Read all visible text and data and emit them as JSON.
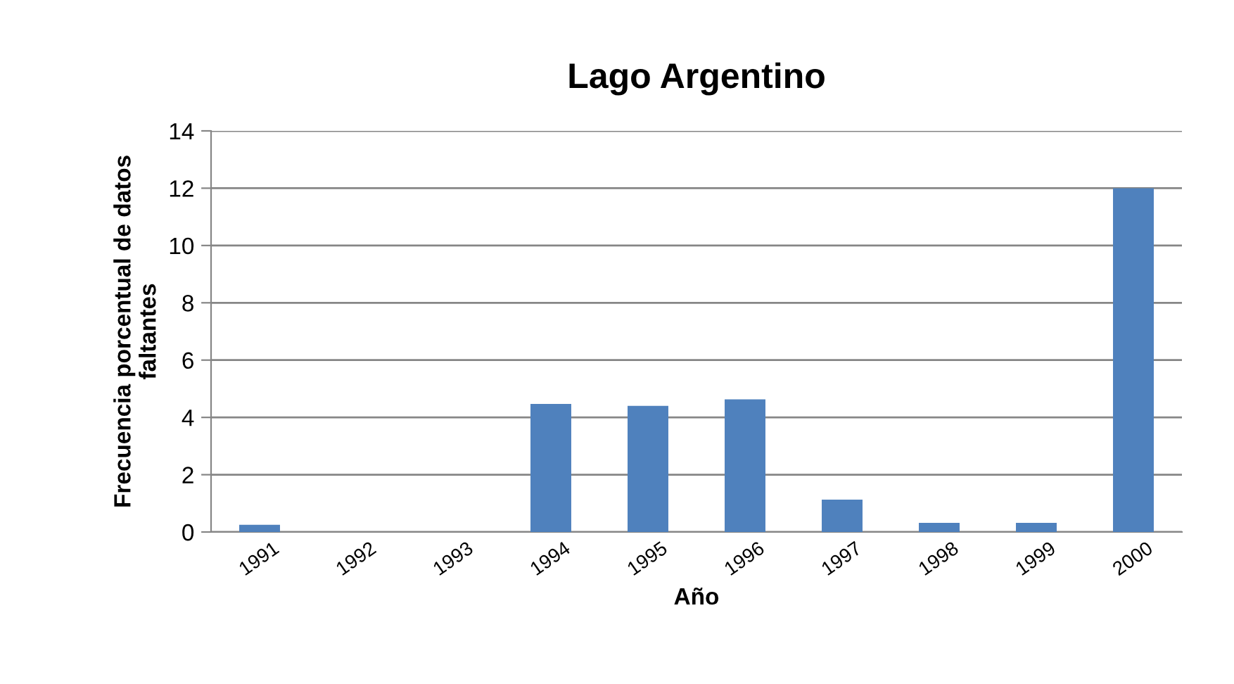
{
  "chart_data": {
    "type": "bar",
    "title": "Lago Argentino",
    "xlabel": "Año",
    "ylabel": "Frecuencia porcentual de datos\nfaltantes",
    "categories": [
      "1991",
      "1992",
      "1993",
      "1994",
      "1995",
      "1996",
      "1997",
      "1998",
      "1999",
      "2000"
    ],
    "values": [
      0.25,
      0,
      0,
      4.47,
      4.4,
      4.63,
      1.13,
      0.32,
      0.32,
      12.0
    ],
    "color": "#4f81bd",
    "ylim": [
      0,
      14
    ],
    "yticks": [
      0,
      2,
      4,
      6,
      8,
      10,
      12,
      14
    ],
    "grid": "y",
    "legend": false
  }
}
